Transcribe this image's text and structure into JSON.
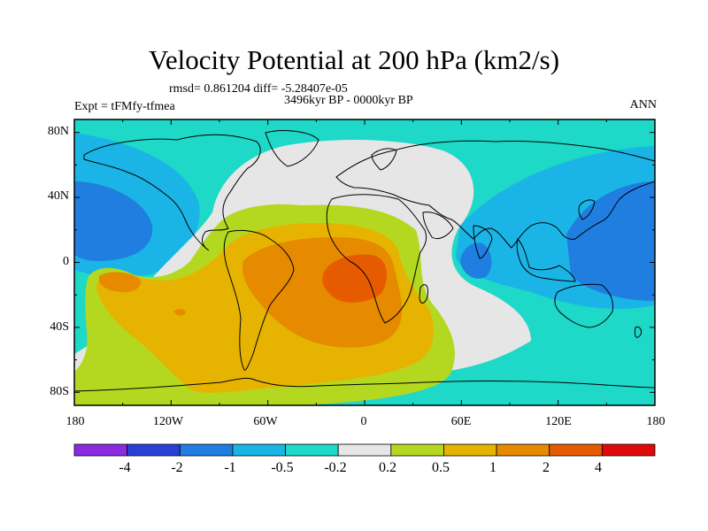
{
  "title": "Velocity Potential at 200 hPa (km2/s)",
  "stats_line": "rmsd= 0.861204 diff= -5.28407e-05",
  "period": "3496kyr BP - 0000kyr BP",
  "experiment": "Expt = tFMfy-tfmea",
  "season": "ANN",
  "lat_labels": [
    "80N",
    "40N",
    "0",
    "40S",
    "80S"
  ],
  "lon_labels": [
    "180",
    "120W",
    "60W",
    "0",
    "60E",
    "120E",
    "180"
  ],
  "colorbar": {
    "colors": [
      "#8a2be2",
      "#2a3fd6",
      "#1f7ee0",
      "#1ab5e6",
      "#1ed8c8",
      "#e6e6e6",
      "#b4d820",
      "#e6b400",
      "#e68a00",
      "#e65a00",
      "#e00a0a"
    ],
    "labels": [
      "-4",
      "-2",
      "-1",
      "-0.5",
      "-0.2",
      "0.2",
      "0.5",
      "1",
      "2",
      "4"
    ]
  },
  "field_colors": {
    "cyan": "#1ed8c8",
    "light_blue": "#1ab5e6",
    "blue": "#1f7ee0",
    "gray": "#e6e6e6",
    "yellow_green": "#b4d820",
    "gold": "#e6b400",
    "orange": "#e68a00",
    "red_orange": "#e65a00"
  }
}
